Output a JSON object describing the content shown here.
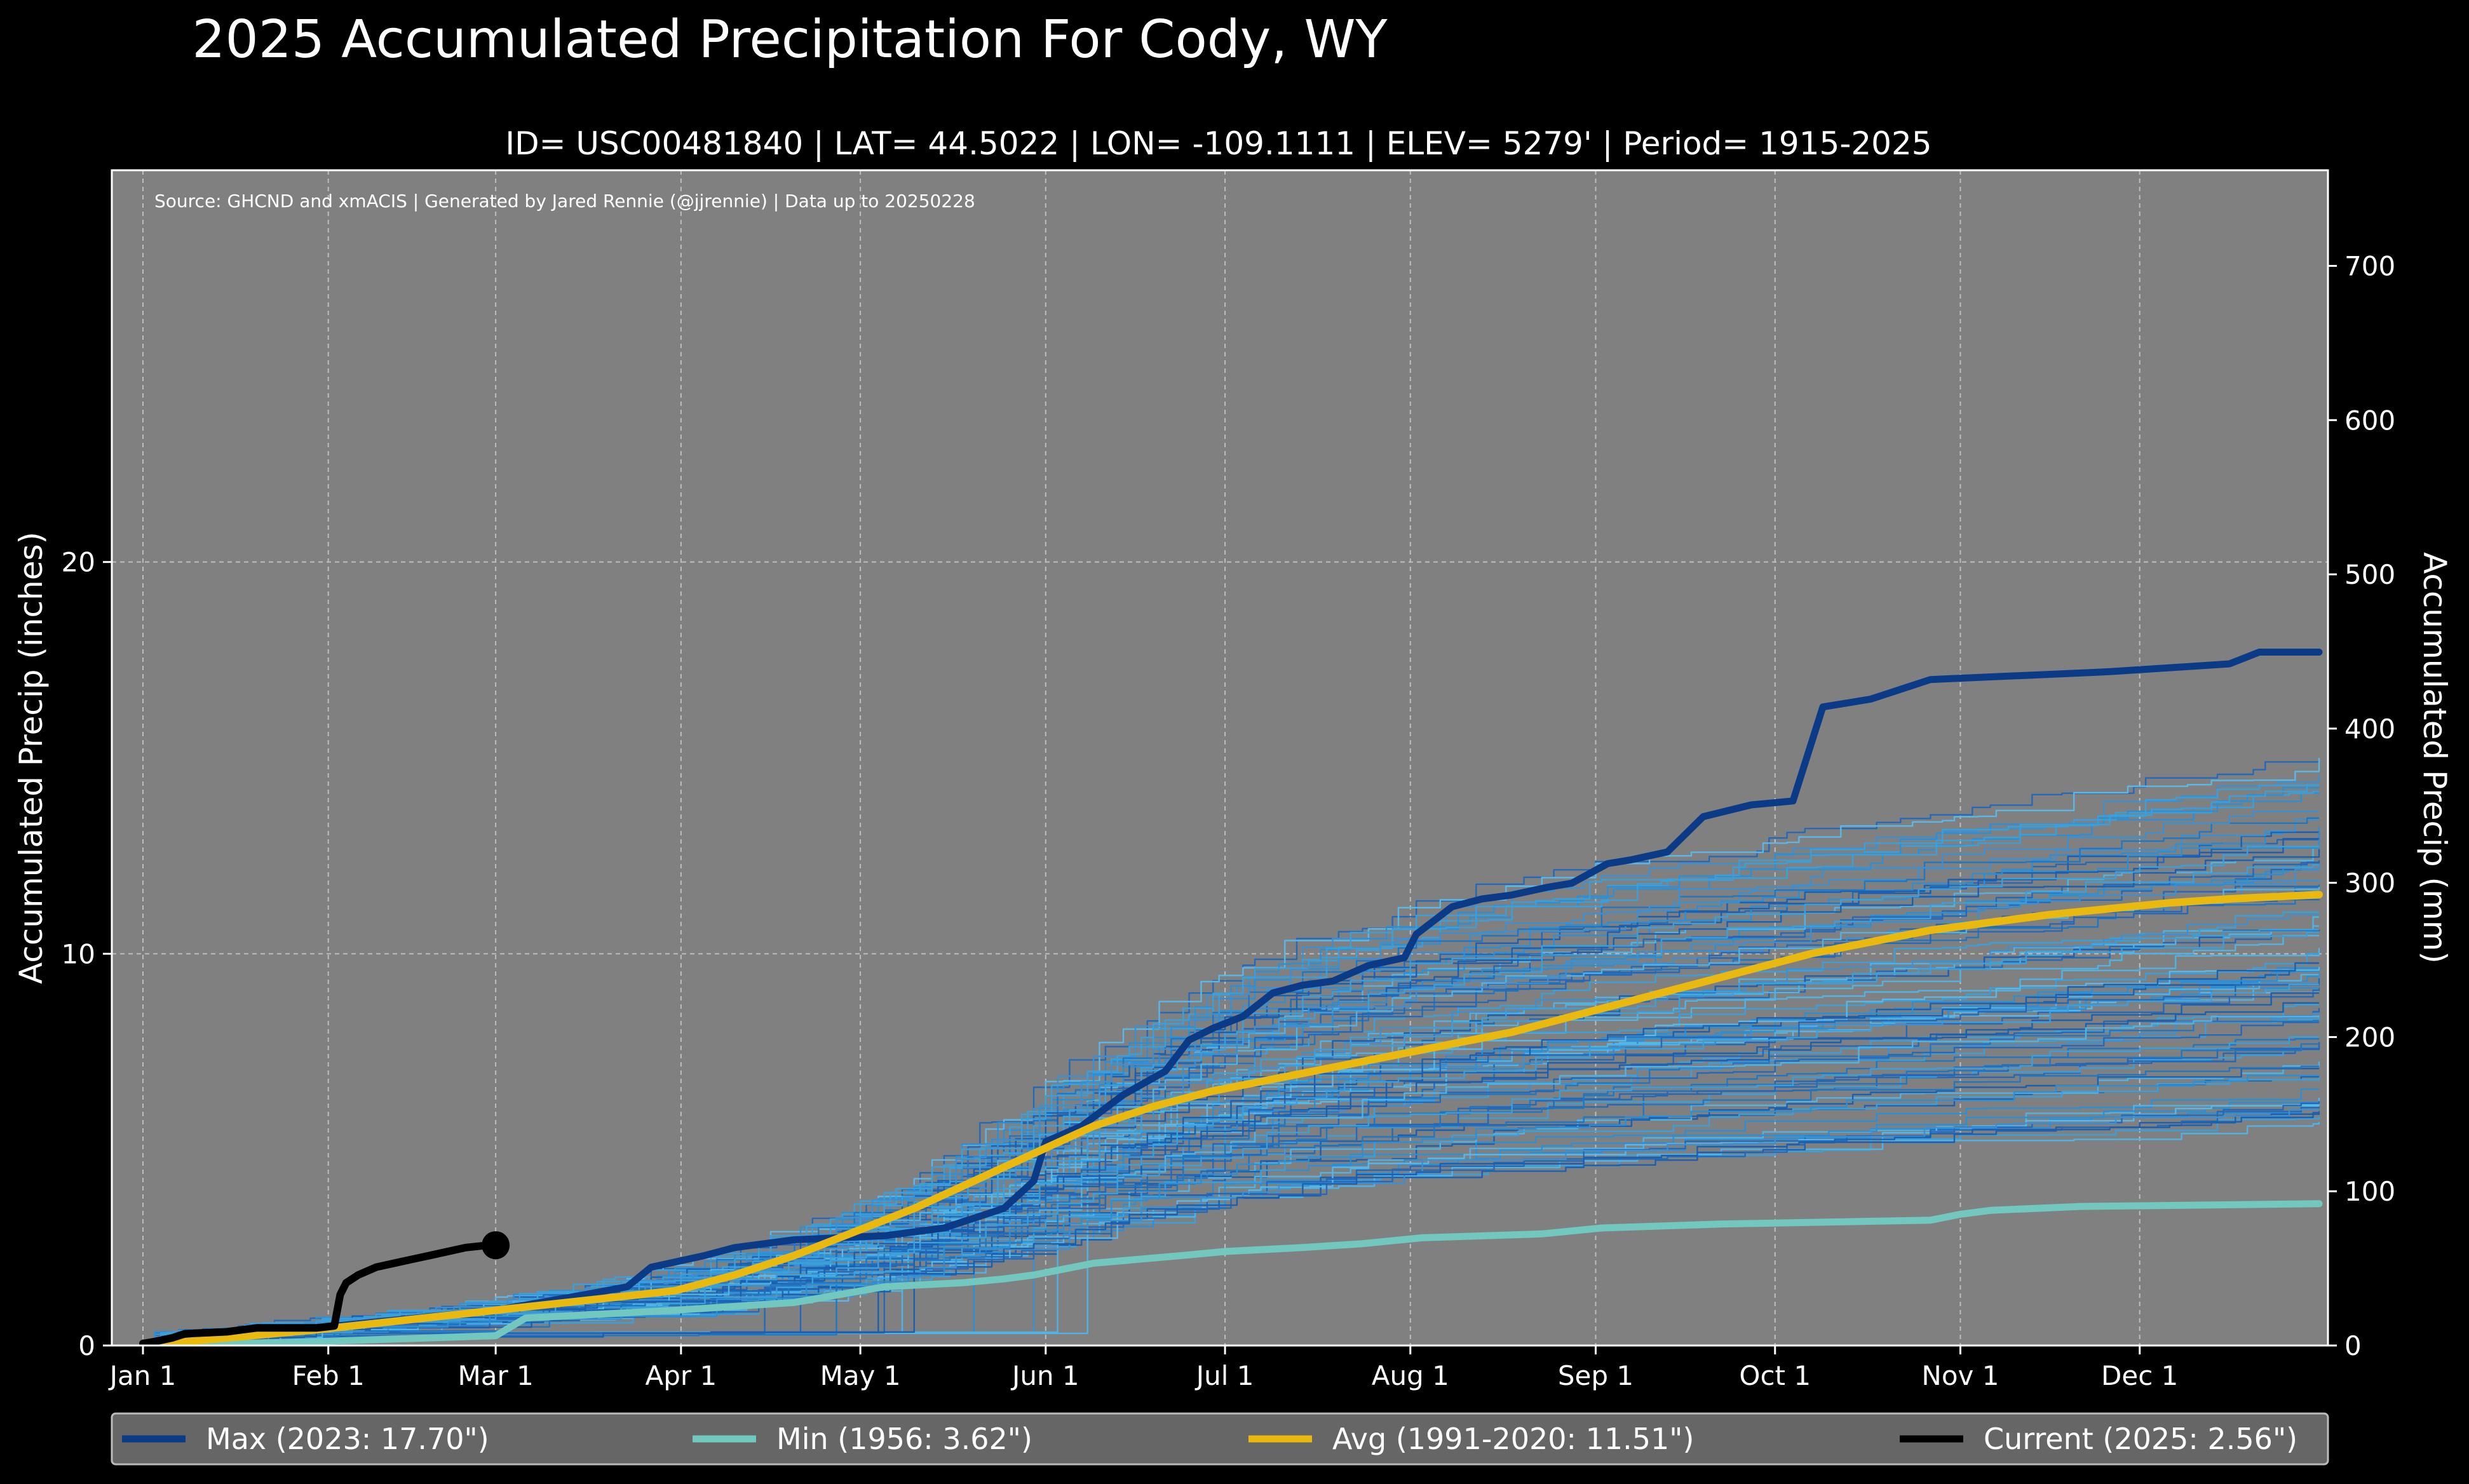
{
  "chart_data": {
    "type": "line",
    "title": "2025 Accumulated Precipitation For Cody, WY",
    "subtitle": "ID= USC00481840 | LAT= 44.5022 | LON= -109.1111 | ELEV= 5279' | Period= 1915-2025",
    "source": "Source: GHCND and xmACIS | Generated by Jared Rennie (@jjrennie) | Data up to 20250228",
    "ylabel_left": "Accumulated Precip (inches)",
    "ylabel_right": "Accumulated Precip (mm)",
    "xlabel": "",
    "x_unit": "day of year",
    "xlim": [
      1,
      365
    ],
    "ylim": [
      0,
      30
    ],
    "ylim_mm": [
      0,
      762
    ],
    "grid": true,
    "x_ticks": [
      {
        "label": "Jan 1",
        "day": 1
      },
      {
        "label": "Feb 1",
        "day": 32
      },
      {
        "label": "Mar 1",
        "day": 60
      },
      {
        "label": "Apr 1",
        "day": 91
      },
      {
        "label": "May 1",
        "day": 121
      },
      {
        "label": "Jun 1",
        "day": 152
      },
      {
        "label": "Jul 1",
        "day": 182
      },
      {
        "label": "Aug 1",
        "day": 213
      },
      {
        "label": "Sep 1",
        "day": 244
      },
      {
        "label": "Oct 1",
        "day": 274
      },
      {
        "label": "Nov 1",
        "day": 305
      },
      {
        "label": "Dec 1",
        "day": 335
      }
    ],
    "y_ticks_left": [
      0,
      10,
      20
    ],
    "y_ticks_right": [
      0,
      100,
      200,
      300,
      400,
      500,
      600,
      700
    ],
    "series": [
      {
        "name": "Max (2023:  17.70\")",
        "color": "#0b3b86",
        "x": [
          1,
          20,
          40,
          60,
          75,
          82,
          86,
          95,
          100,
          110,
          125,
          135,
          145,
          150,
          152,
          158,
          165,
          172,
          176,
          180,
          185,
          190,
          195,
          200,
          206,
          212,
          214,
          220,
          225,
          230,
          236,
          240,
          246,
          250,
          256,
          262,
          270,
          277,
          282,
          290,
          296,
          300,
          330,
          350,
          355,
          365
        ],
        "y": [
          0.05,
          0.3,
          0.6,
          0.9,
          1.3,
          1.5,
          2.0,
          2.3,
          2.5,
          2.7,
          2.8,
          3.0,
          3.5,
          4.2,
          5.2,
          5.6,
          6.4,
          7.0,
          7.8,
          8.1,
          8.4,
          9.0,
          9.2,
          9.3,
          9.7,
          9.9,
          10.5,
          11.2,
          11.4,
          11.5,
          11.7,
          11.8,
          12.3,
          12.4,
          12.6,
          13.5,
          13.8,
          13.9,
          16.3,
          16.5,
          16.8,
          17.0,
          17.2,
          17.4,
          17.7,
          17.7
        ]
      },
      {
        "name": "Min (1956:   3.62\")",
        "color": "#72c7be",
        "x": [
          1,
          30,
          60,
          65,
          90,
          110,
          125,
          138,
          145,
          150,
          160,
          175,
          182,
          195,
          205,
          215,
          235,
          245,
          265,
          300,
          305,
          310,
          325,
          365
        ],
        "y": [
          0.0,
          0.1,
          0.25,
          0.7,
          0.9,
          1.1,
          1.5,
          1.6,
          1.7,
          1.8,
          2.1,
          2.3,
          2.4,
          2.5,
          2.6,
          2.75,
          2.85,
          3.0,
          3.1,
          3.2,
          3.35,
          3.45,
          3.55,
          3.62
        ]
      },
      {
        "name": "Avg (1991-2020:  11.51\")",
        "color": "#e9b90f",
        "x": [
          1,
          30,
          60,
          90,
          100,
          110,
          120,
          130,
          140,
          150,
          160,
          170,
          180,
          190,
          200,
          210,
          220,
          230,
          240,
          250,
          260,
          270,
          280,
          290,
          300,
          310,
          320,
          330,
          340,
          350,
          365
        ],
        "y": [
          0.0,
          0.4,
          0.9,
          1.4,
          1.8,
          2.3,
          2.9,
          3.5,
          4.2,
          4.9,
          5.6,
          6.1,
          6.5,
          6.8,
          7.1,
          7.4,
          7.7,
          8.0,
          8.4,
          8.8,
          9.2,
          9.6,
          10.0,
          10.3,
          10.6,
          10.8,
          11.0,
          11.15,
          11.3,
          11.4,
          11.51
        ]
      },
      {
        "name": "Current (2025:   2.56\")",
        "color": "#000000",
        "x": [
          1,
          3,
          6,
          8,
          15,
          20,
          25,
          30,
          33,
          34,
          35,
          37,
          40,
          43,
          46,
          49,
          52,
          55,
          58,
          60
        ],
        "y": [
          0.05,
          0.1,
          0.2,
          0.3,
          0.35,
          0.45,
          0.45,
          0.45,
          0.5,
          1.3,
          1.6,
          1.8,
          2.0,
          2.1,
          2.2,
          2.3,
          2.4,
          2.5,
          2.55,
          2.56
        ]
      }
    ],
    "legend": [
      {
        "label": "Max (2023:  17.70\")",
        "color": "#0b3b86"
      },
      {
        "label": "Min (1956:   3.62\")",
        "color": "#72c7be"
      },
      {
        "label": "Avg (1991-2020:  11.51\")",
        "color": "#e9b90f"
      },
      {
        "label": "Current (2025:   2.56\")",
        "color": "#000000"
      }
    ],
    "legend_position": "bottom",
    "background_color": "#808080",
    "historical_years_color": "#1f77c4"
  }
}
